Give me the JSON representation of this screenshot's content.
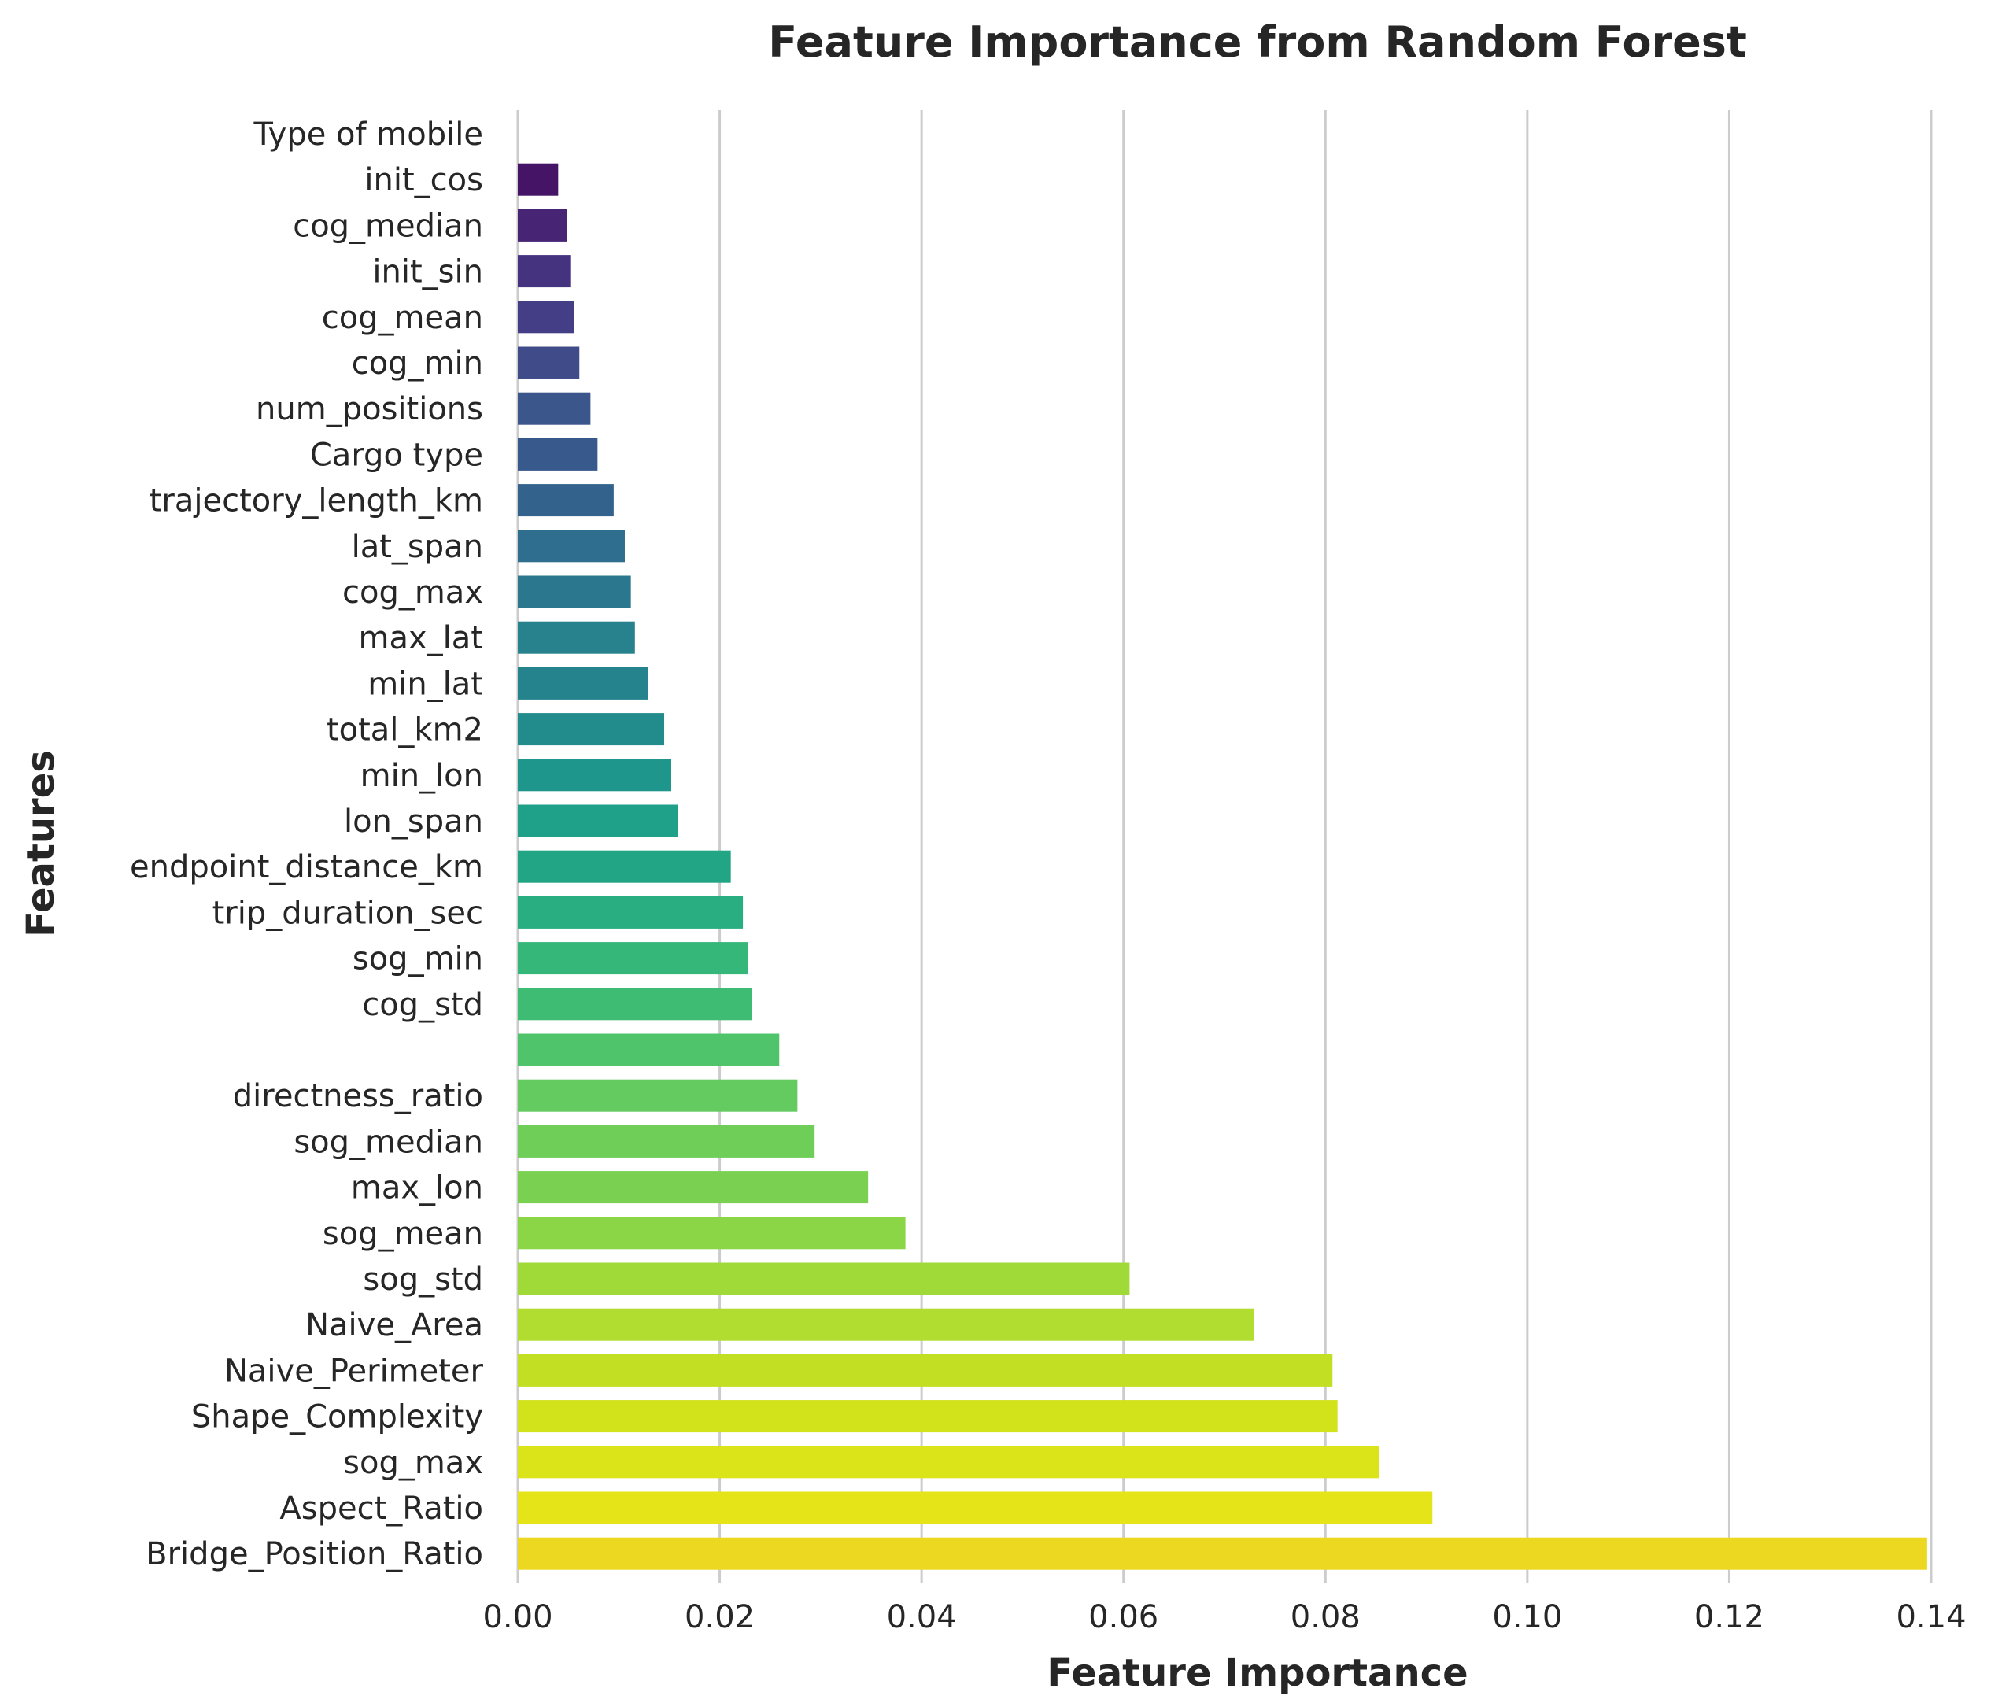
{
  "chart_data": {
    "type": "bar",
    "orientation": "horizontal",
    "title": "Feature Importance from Random Forest",
    "xlabel": "Feature Importance",
    "ylabel": "Features",
    "xlim": [
      0,
      0.14
    ],
    "xticks": [
      0.0,
      0.02,
      0.04,
      0.06,
      0.08,
      0.1,
      0.12,
      0.14
    ],
    "xtick_labels": [
      "0.00",
      "0.02",
      "0.04",
      "0.06",
      "0.08",
      "0.10",
      "0.12",
      "0.14"
    ],
    "grid": "vertical",
    "palette": "viridis",
    "categories": [
      "Type of mobile",
      "init_cos",
      "cog_median",
      "init_sin",
      "cog_mean",
      "cog_min",
      "num_positions",
      "Cargo type",
      "trajectory_length_km",
      "lat_span",
      "cog_max",
      "max_lat",
      "min_lat",
      "total_km2",
      "min_lon",
      "lon_span",
      "endpoint_distance_km",
      "trip_duration_sec",
      "sog_min",
      "cog_std",
      "",
      "directness_ratio",
      "sog_median",
      "max_lon",
      "sog_mean",
      "sog_std",
      "Naive_Area",
      "Naive_Perimeter",
      "Shape_Complexity",
      "sog_max",
      "Aspect_Ratio",
      "Bridge_Position_Ratio"
    ],
    "values": [
      0.0,
      0.004,
      0.0049,
      0.0052,
      0.0056,
      0.0061,
      0.0072,
      0.0079,
      0.0095,
      0.0106,
      0.0112,
      0.0116,
      0.0129,
      0.0145,
      0.0152,
      0.0159,
      0.0211,
      0.0223,
      0.0228,
      0.0232,
      0.0259,
      0.0277,
      0.0294,
      0.0347,
      0.0384,
      0.0606,
      0.0729,
      0.0807,
      0.0812,
      0.0853,
      0.0906,
      0.1396
    ],
    "colors": [
      "#440154",
      "#461466",
      "#472474",
      "#46337f",
      "#433e85",
      "#404b8a",
      "#3b568b",
      "#38598c",
      "#33638d",
      "#2f6e8e",
      "#2b788e",
      "#28828e",
      "#25838e",
      "#228c8d",
      "#1f968b",
      "#1fa088",
      "#21a585",
      "#28ae80",
      "#35b779",
      "#3fbc73",
      "#50c46a",
      "#63cb5f",
      "#6ece58",
      "#7ad151",
      "#8bd646",
      "#a0da39",
      "#b0dd2f",
      "#c2df23",
      "#d2e21b",
      "#dbe319",
      "#e4e419",
      "#ecd721"
    ]
  }
}
